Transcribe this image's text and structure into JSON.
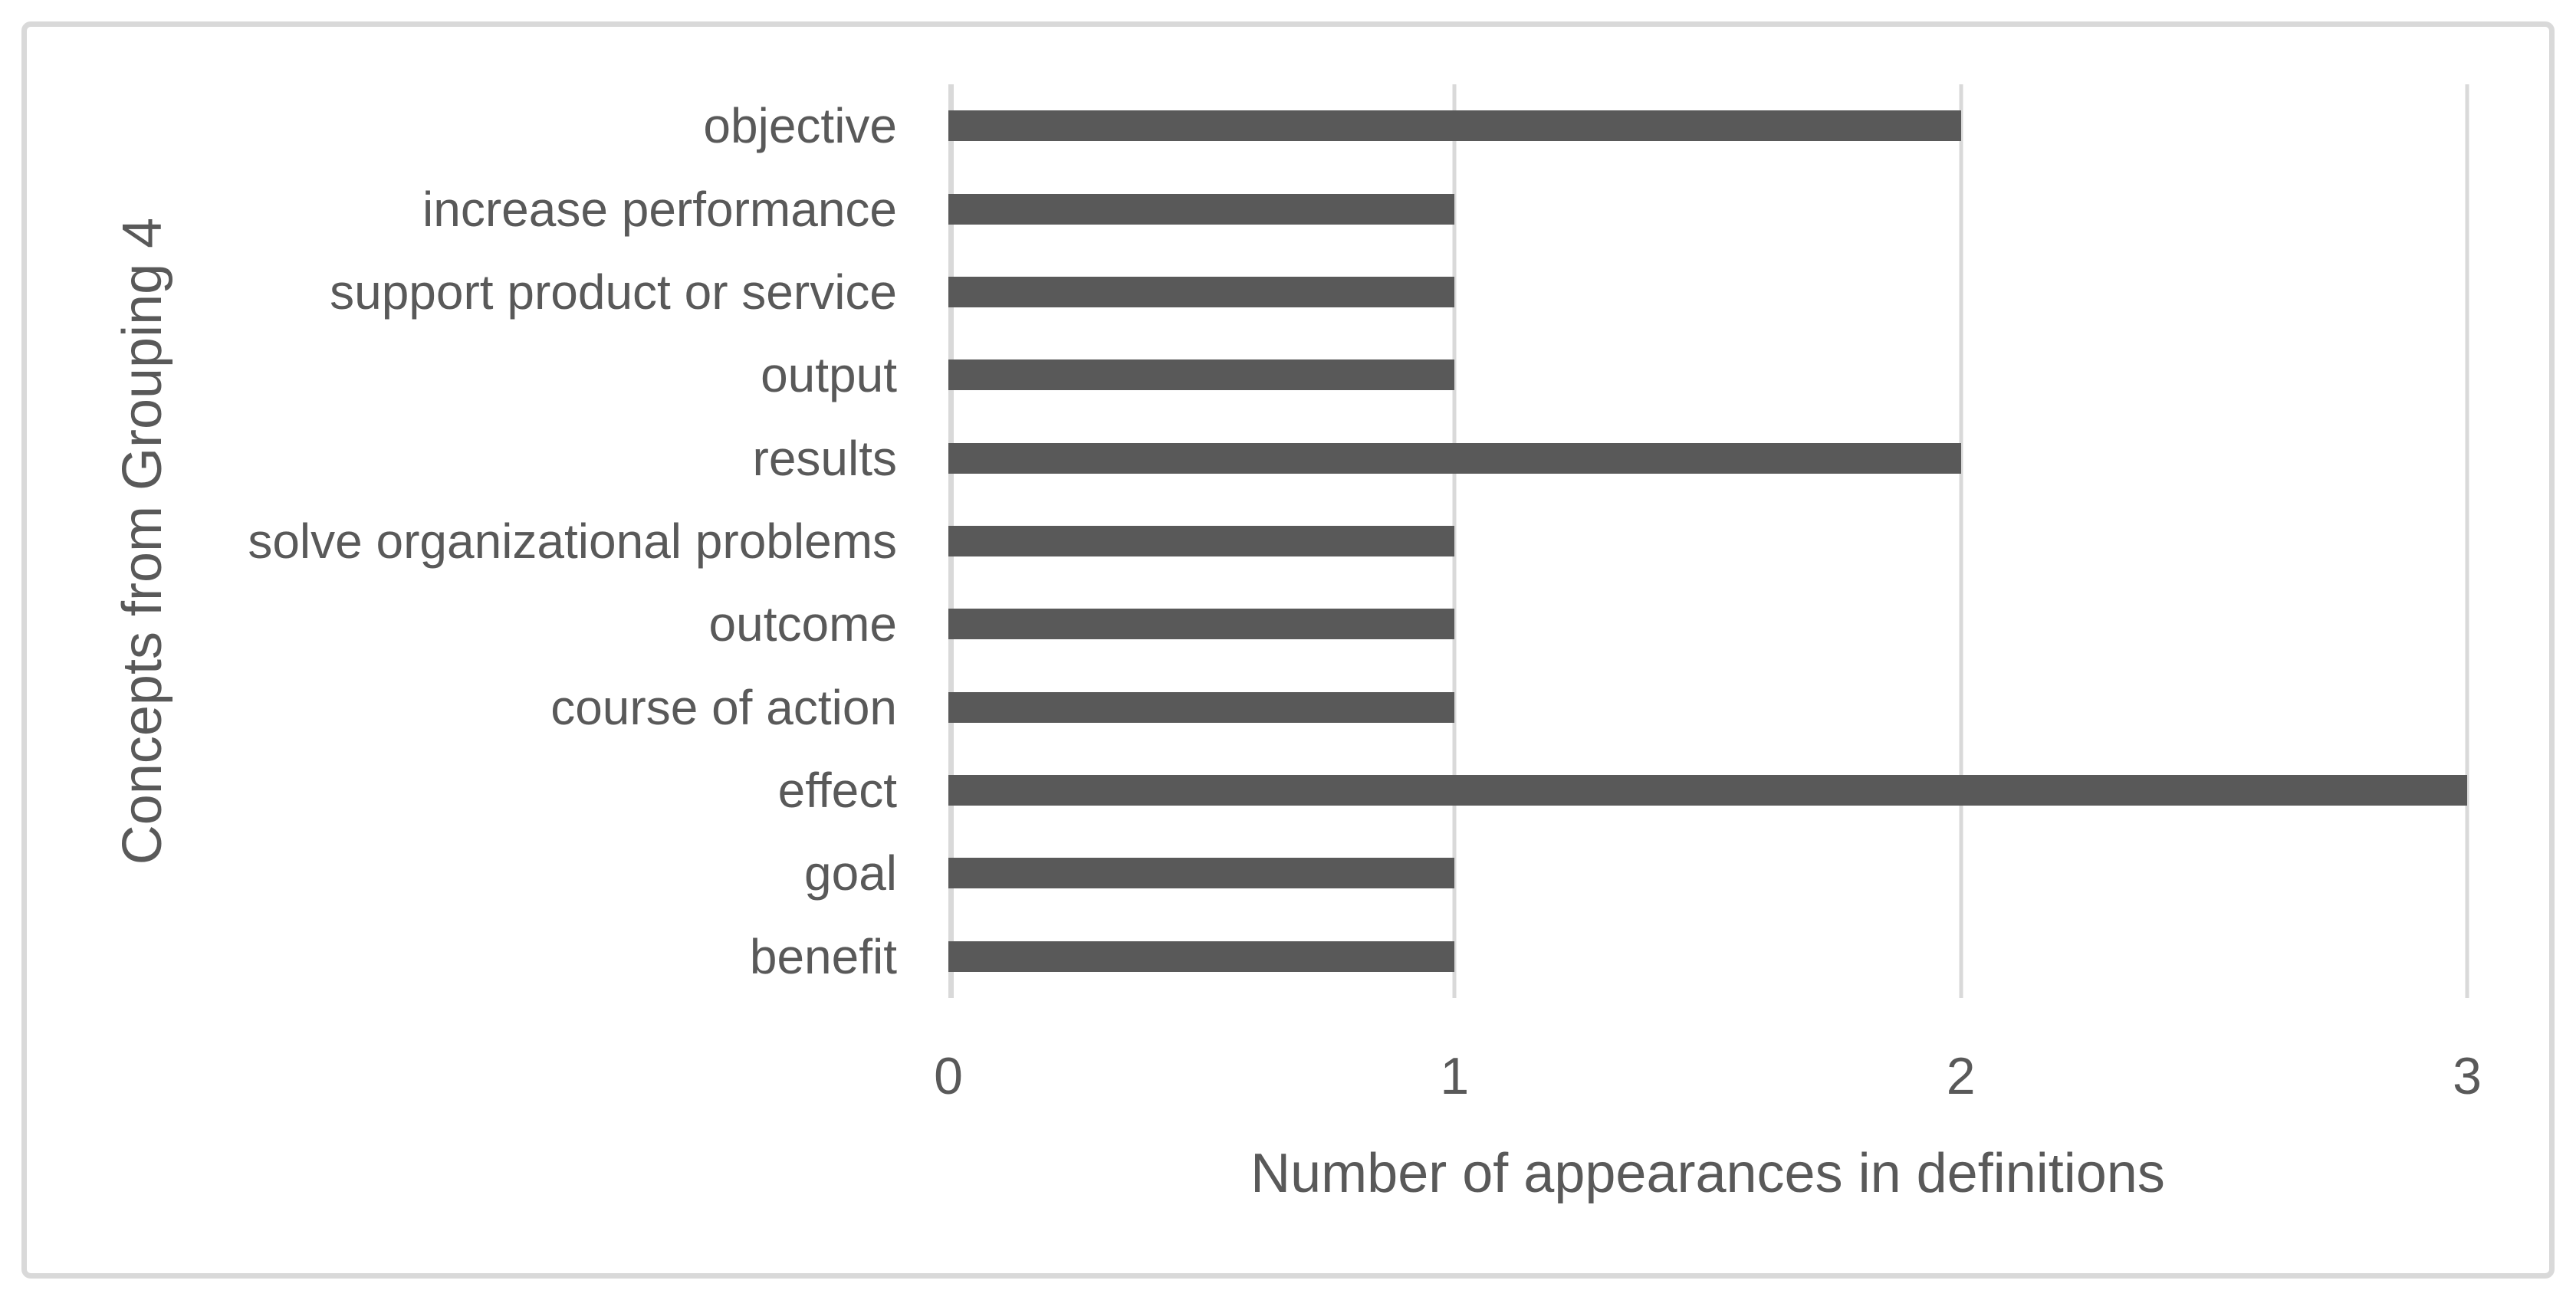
{
  "chart_data": {
    "type": "bar",
    "orientation": "horizontal",
    "categories": [
      "objective",
      "increase performance",
      "support product or service",
      "output",
      "results",
      "solve organizational problems",
      "outcome",
      "course of action",
      "effect",
      "goal",
      "benefit"
    ],
    "values": [
      2,
      1,
      1,
      1,
      2,
      1,
      1,
      1,
      3,
      1,
      1
    ],
    "title": "",
    "xlabel": "Number of appearances in definitions",
    "ylabel": "Concepts from Grouping 4",
    "xlim": [
      0,
      3
    ],
    "x_ticks": [
      0,
      1,
      2,
      3
    ],
    "grid": "vertical-gridlines-on",
    "legend": "none",
    "colors": {
      "bar": "#595959",
      "gridline": "#d9d9d9",
      "axis_line": "#d9d9d9",
      "text": "#595959",
      "frame_border": "#d9d9d9",
      "background": "#ffffff"
    }
  }
}
